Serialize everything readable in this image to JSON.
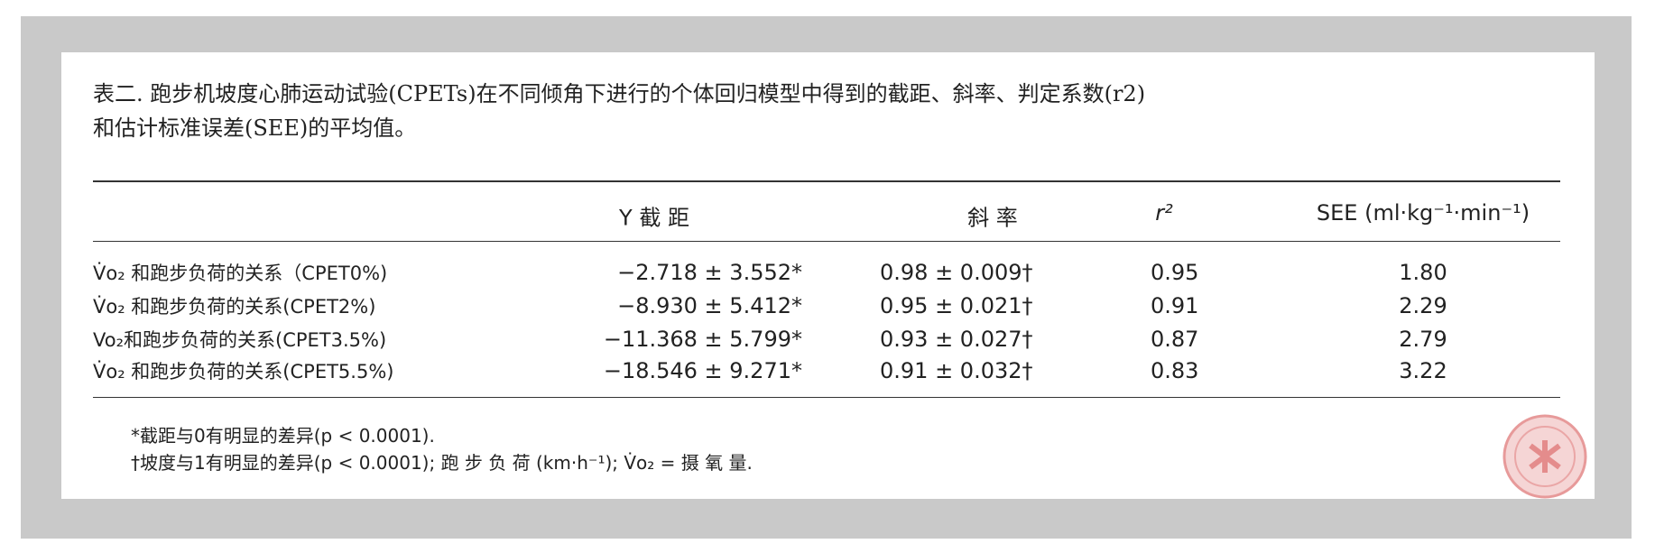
{
  "caption": [
    "表二. 跑步机坡度心肺运动试验(CPETs)在不同倾角下进行的个体回归模型中得到的截距、斜率、判定系数(r2)",
    "和估计标准误差(SEE)的平均值。"
  ],
  "table": {
    "header": [
      "Y 截 距",
      "斜 率",
      "r²",
      "SEE (ml·kg⁻¹·min⁻¹)"
    ],
    "rows": [
      [
        "V̇o₂ 和跑步负荷的关系（CPET0%)",
        "−2.718 ± 3.552*",
        "0.98 ± 0.009†",
        "0.95",
        "1.80"
      ],
      [
        "V̇o₂ 和跑步负荷的关系(CPET2%)",
        "−8.930 ± 5.412*",
        "0.95 ± 0.021†",
        "0.91",
        "2.29"
      ],
      [
        "Vo₂和跑步负荷的关系(CPET3.5%)",
        "−11.368 ± 5.799*",
        "0.93 ± 0.027†",
        "0.87",
        "2.79"
      ],
      [
        "V̇o₂ 和跑步负荷的关系(CPET5.5%)",
        "−18.546 ± 9.271*",
        "0.91 ± 0.032†",
        "0.83",
        "3.22"
      ]
    ]
  },
  "footnotes": [
    "*截距与0有明显的差异(p < 0.0001).",
    "†坡度与1有明显的差异(p < 0.0001); 跑 步 负 荷 (km·h⁻¹); V̇o₂ = 摄 氧 量."
  ]
}
